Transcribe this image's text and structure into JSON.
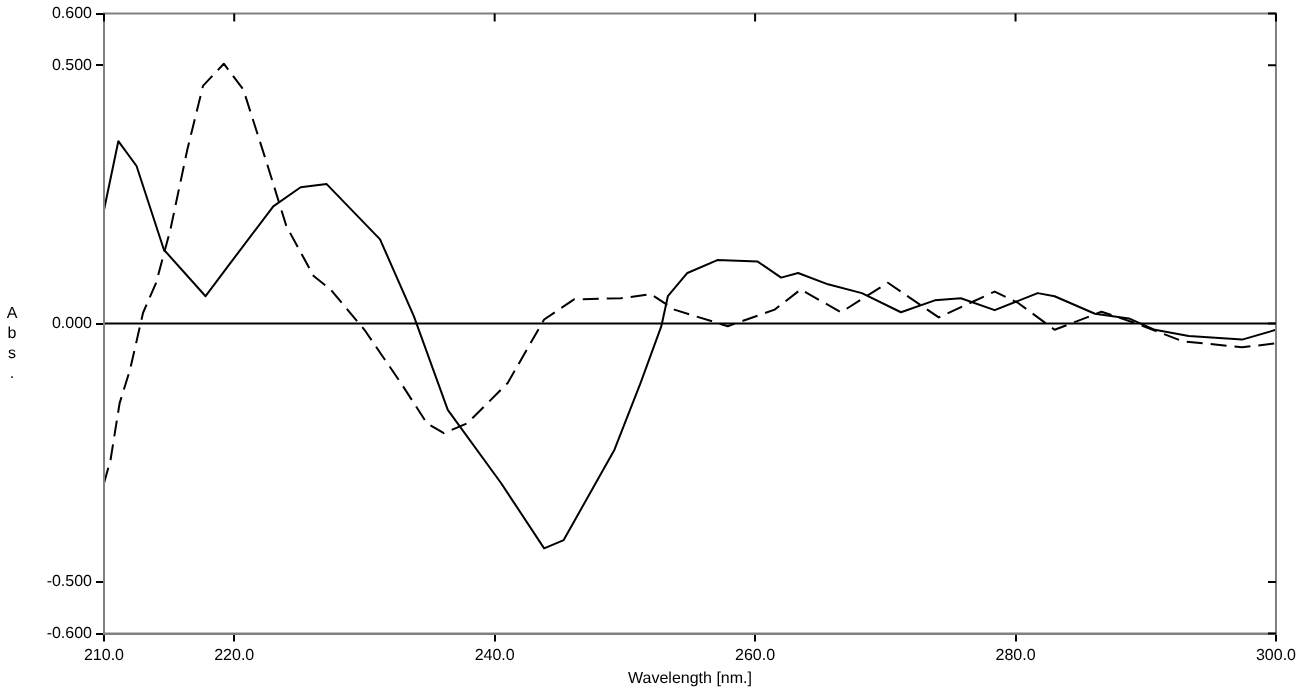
{
  "chart_data": {
    "type": "line",
    "xlabel": "Wavelength [nm.]",
    "ylabel": "Abs.",
    "xlim": [
      210,
      300
    ],
    "ylim": [
      -0.6,
      0.6
    ],
    "xticks": [
      {
        "value": 210,
        "label": "210.0"
      },
      {
        "value": 220,
        "label": "220.0"
      },
      {
        "value": 240,
        "label": "240.0"
      },
      {
        "value": 260,
        "label": "260.0"
      },
      {
        "value": 280,
        "label": "280.0"
      },
      {
        "value": 300,
        "label": "300.0"
      }
    ],
    "yticks": [
      {
        "value": -0.6,
        "label": "-0.600"
      },
      {
        "value": -0.5,
        "label": "-0.500"
      },
      {
        "value": 0,
        "label": "0.000"
      },
      {
        "value": 0.5,
        "label": "0.500"
      },
      {
        "value": 0.6,
        "label": "0.600"
      }
    ],
    "grid": false,
    "legend": false,
    "marker": "none",
    "ref_lines": [
      {
        "axis": "y",
        "value": 0,
        "color": "#000000"
      }
    ],
    "series": [
      {
        "color": "#000000",
        "line_style": "solid",
        "x": [
          210,
          211.1,
          212.5,
          214.6,
          217.8,
          219.7,
          223,
          225.1,
          227.1,
          231.2,
          233.8,
          236.4,
          240.5,
          243.8,
          245.3,
          249.2,
          251.2,
          252.8,
          253.3,
          254.8,
          257.1,
          260.2,
          262,
          263.3,
          265.6,
          268.2,
          271.2,
          273.8,
          275.8,
          278.4,
          281.7,
          283,
          286.1,
          288.7,
          290.7,
          293.3,
          297.4,
          300
        ],
        "values": [
          0.22,
          0.353,
          0.305,
          0.143,
          0.053,
          0.117,
          0.227,
          0.264,
          0.27,
          0.163,
          0.014,
          -0.167,
          -0.309,
          -0.435,
          -0.419,
          -0.244,
          -0.115,
          -0.005,
          0.053,
          0.098,
          0.123,
          0.12,
          0.089,
          0.098,
          0.076,
          0.059,
          0.022,
          0.045,
          0.049,
          0.026,
          0.059,
          0.053,
          0.019,
          0.01,
          -0.012,
          -0.024,
          -0.031,
          -0.012
        ]
      },
      {
        "color": "#000000",
        "line_style": "dashed",
        "x": [
          210,
          210.5,
          211.2,
          212,
          213,
          214,
          215.1,
          216.4,
          217.6,
          219.2,
          220.7,
          222.5,
          224,
          226.1,
          227.4,
          230,
          232.8,
          234.8,
          236.1,
          237.9,
          241,
          243.8,
          246.1,
          249.7,
          252,
          253.8,
          257.9,
          261.5,
          263.5,
          266.6,
          270.2,
          274.1,
          278.4,
          280.2,
          283,
          286.6,
          289.2,
          292.8,
          297.4,
          300
        ],
        "values": [
          -0.309,
          -0.264,
          -0.154,
          -0.089,
          0.021,
          0.079,
          0.182,
          0.337,
          0.46,
          0.503,
          0.453,
          0.311,
          0.189,
          0.092,
          0.066,
          -0.012,
          -0.115,
          -0.193,
          -0.212,
          -0.193,
          -0.115,
          0.008,
          0.047,
          0.049,
          0.057,
          0.027,
          -0.005,
          0.027,
          0.066,
          0.022,
          0.079,
          0.012,
          0.062,
          0.04,
          -0.012,
          0.023,
          0.001,
          -0.034,
          -0.046,
          -0.038
        ]
      }
    ]
  }
}
